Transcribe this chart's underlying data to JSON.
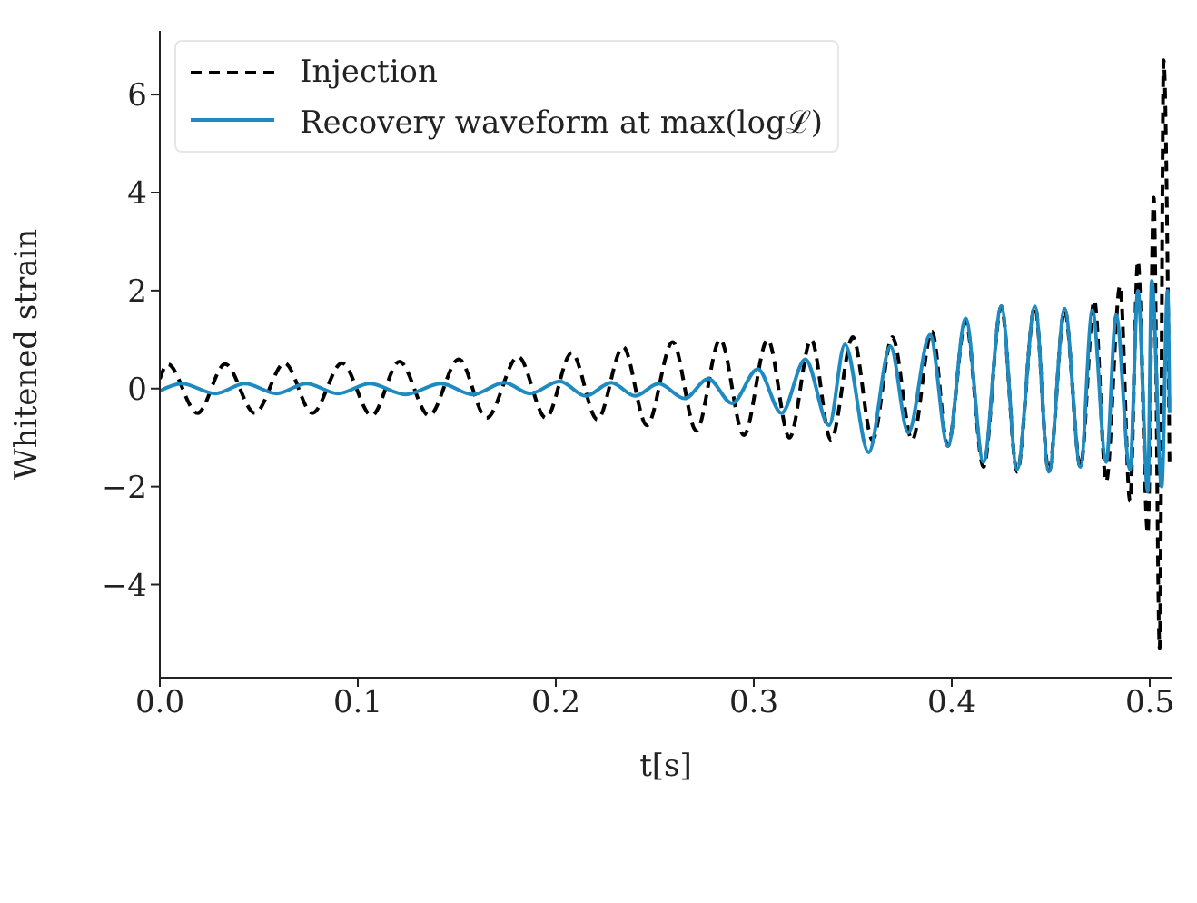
{
  "chart_data": {
    "type": "line",
    "xlabel": "t[s]",
    "ylabel": "Whitened strain",
    "legend": "top left",
    "grid": false,
    "marker": "none",
    "xlim": [
      0,
      0.511
    ],
    "ylim": [
      -5.9,
      7.3
    ],
    "xticks": [
      {
        "value": 0,
        "label": "0.0"
      },
      {
        "value": 0.1,
        "label": "0.1"
      },
      {
        "value": 0.2,
        "label": "0.2"
      },
      {
        "value": 0.3,
        "label": "0.3"
      },
      {
        "value": 0.4,
        "label": "0.4"
      },
      {
        "value": 0.5,
        "label": "0.5"
      }
    ],
    "yticks": [
      {
        "value": -4,
        "label": "−4"
      },
      {
        "value": -2,
        "label": "−2"
      },
      0,
      2,
      4,
      6
    ],
    "series": [
      {
        "name": "Injection",
        "color": "#000000",
        "line_style": "dashed",
        "x": [
          0,
          0.004,
          0.019,
          0.033,
          0.048,
          0.063,
          0.077,
          0.092,
          0.107,
          0.121,
          0.136,
          0.151,
          0.165,
          0.181,
          0.195,
          0.208,
          0.221,
          0.234,
          0.246,
          0.259,
          0.271,
          0.283,
          0.295,
          0.307,
          0.318,
          0.329,
          0.339,
          0.35,
          0.36,
          0.37,
          0.38,
          0.39,
          0.398,
          0.407,
          0.416,
          0.425,
          0.433,
          0.442,
          0.449,
          0.457,
          0.465,
          0.472,
          0.478,
          0.485,
          0.49,
          0.494,
          0.499,
          0.502,
          0.505,
          0.507,
          0.51
        ],
        "values": [
          0.2,
          0.5,
          -0.5,
          0.5,
          -0.5,
          0.52,
          -0.5,
          0.52,
          -0.55,
          0.55,
          -0.55,
          0.6,
          -0.6,
          0.65,
          -0.6,
          0.73,
          -0.63,
          0.85,
          -0.75,
          0.95,
          -0.86,
          1.0,
          -0.95,
          1.0,
          -1.0,
          1.0,
          -1.05,
          1.05,
          -1.05,
          1.05,
          -1.05,
          1.17,
          -1.17,
          1.37,
          -1.6,
          1.68,
          -1.7,
          1.68,
          -1.7,
          1.6,
          -1.6,
          1.8,
          -1.9,
          2.1,
          -2.3,
          2.6,
          -2.95,
          3.9,
          -5.3,
          6.7,
          -1.5
        ]
      },
      {
        "name": "Recovery waveform at max(logℒ)",
        "color": "#1f8ac0",
        "line_style": "solid",
        "x": [
          0,
          0.011,
          0.028,
          0.043,
          0.059,
          0.074,
          0.09,
          0.106,
          0.124,
          0.142,
          0.158,
          0.174,
          0.187,
          0.202,
          0.215,
          0.228,
          0.24,
          0.252,
          0.265,
          0.277,
          0.289,
          0.302,
          0.314,
          0.326,
          0.338,
          0.346,
          0.358,
          0.369,
          0.378,
          0.389,
          0.398,
          0.407,
          0.416,
          0.425,
          0.433,
          0.442,
          0.449,
          0.457,
          0.465,
          0.471,
          0.478,
          0.483,
          0.49,
          0.494,
          0.499,
          0.501,
          0.506,
          0.509,
          0.51
        ],
        "values": [
          -0.05,
          0.1,
          -0.1,
          0.1,
          -0.1,
          0.1,
          -0.1,
          0.1,
          -0.12,
          0.1,
          -0.12,
          0.12,
          -0.1,
          0.15,
          -0.15,
          0.12,
          -0.15,
          0.1,
          -0.2,
          0.2,
          -0.3,
          0.4,
          -0.5,
          0.6,
          -0.75,
          0.9,
          -1.3,
          0.86,
          -0.9,
          1.1,
          -1.17,
          1.43,
          -1.5,
          1.68,
          -1.65,
          1.68,
          -1.7,
          1.63,
          -1.6,
          1.6,
          -1.5,
          1.5,
          -1.65,
          2.0,
          -2.1,
          2.2,
          -2.0,
          2.0,
          -0.5
        ]
      }
    ]
  }
}
